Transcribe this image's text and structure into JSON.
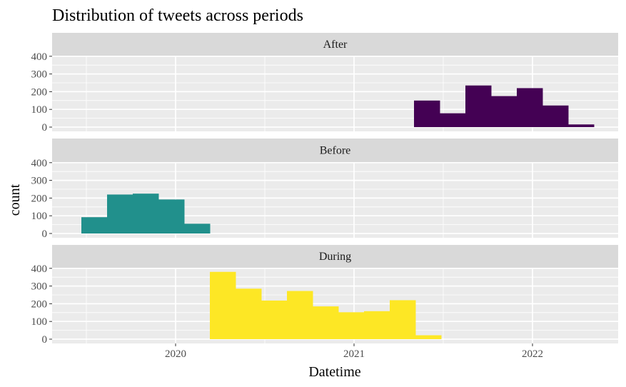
{
  "chart_data": {
    "type": "bar",
    "title": "Distribution of tweets across periods",
    "xlabel": "Datetime",
    "ylabel": "count",
    "ylim": [
      0,
      450
    ],
    "y_ticks": [
      0,
      100,
      200,
      300,
      400
    ],
    "x_ticks": [
      {
        "value": 2020,
        "label": "2020"
      },
      {
        "value": 2021,
        "label": "2021"
      },
      {
        "value": 2022,
        "label": "2022"
      }
    ],
    "xlim": [
      2019.5,
      2022.5
    ],
    "grid": true,
    "legend": "none",
    "bin_width": 0.1439,
    "panels": [
      {
        "name": "After",
        "color": "#440154",
        "bins": [
          {
            "x": 2021.336,
            "count": 150
          },
          {
            "x": 2021.48,
            "count": 78
          },
          {
            "x": 2021.624,
            "count": 235
          },
          {
            "x": 2021.768,
            "count": 175
          },
          {
            "x": 2021.912,
            "count": 220
          },
          {
            "x": 2022.056,
            "count": 122
          },
          {
            "x": 2022.2,
            "count": 15
          }
        ]
      },
      {
        "name": "Before",
        "color": "#21908C",
        "bins": [
          {
            "x": 2019.472,
            "count": 92
          },
          {
            "x": 2019.616,
            "count": 220
          },
          {
            "x": 2019.76,
            "count": 225
          },
          {
            "x": 2019.904,
            "count": 192
          },
          {
            "x": 2020.048,
            "count": 55
          }
        ]
      },
      {
        "name": "During",
        "color": "#FDE725",
        "bins": [
          {
            "x": 2020.192,
            "count": 380
          },
          {
            "x": 2020.336,
            "count": 285
          },
          {
            "x": 2020.48,
            "count": 218
          },
          {
            "x": 2020.624,
            "count": 272
          },
          {
            "x": 2020.768,
            "count": 185
          },
          {
            "x": 2020.912,
            "count": 152
          },
          {
            "x": 2021.056,
            "count": 158
          },
          {
            "x": 2021.2,
            "count": 220
          },
          {
            "x": 2021.344,
            "count": 22
          }
        ]
      }
    ]
  }
}
